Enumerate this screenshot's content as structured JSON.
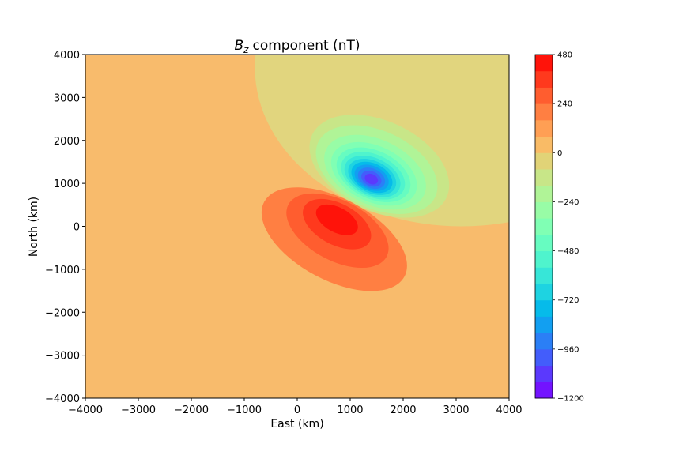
{
  "chart_data": {
    "type": "heatmap",
    "subtype": "filled-contour",
    "title": "component (nT)",
    "title_symbol": "B",
    "title_subscript": "z",
    "xlabel": "East (km)",
    "ylabel": "North (km)",
    "xlim": [
      -4000,
      4000
    ],
    "ylim": [
      -4000,
      4000
    ],
    "xticks": [
      -4000,
      -3000,
      -2000,
      -1000,
      0,
      1000,
      2000,
      3000,
      4000
    ],
    "yticks": [
      -4000,
      -3000,
      -2000,
      -1000,
      0,
      1000,
      2000,
      3000,
      4000
    ],
    "xtick_labels": [
      "−4000",
      "−3000",
      "−2000",
      "−1000",
      "0",
      "1000",
      "2000",
      "3000",
      "4000"
    ],
    "ytick_labels": [
      "−4000",
      "−3000",
      "−2000",
      "−1000",
      "0",
      "1000",
      "2000",
      "3000",
      "4000"
    ],
    "colormap": "rainbow",
    "colorbar": {
      "min": -1200,
      "max": 480,
      "level_step": 80,
      "ticks": [
        480,
        240,
        0,
        -240,
        -480,
        -720,
        -960,
        -1200
      ],
      "tick_labels": [
        "480",
        "240",
        "0",
        "−240",
        "−480",
        "−720",
        "−960",
        "−1200"
      ]
    },
    "grid": false,
    "features": [
      {
        "kind": "minimum",
        "x": 1400,
        "y": 1100,
        "value": -1200
      },
      {
        "kind": "maximum",
        "x": 750,
        "y": 150,
        "value": 440
      }
    ],
    "background_band": {
      "range": [
        0,
        80
      ],
      "color": "#f8bb6c"
    },
    "colors": {
      "background": "#f8bb6c",
      "negative_halo": "#e1d57e",
      "positive_peak": "#ff2410",
      "negative_peak": "#8000ff"
    }
  }
}
